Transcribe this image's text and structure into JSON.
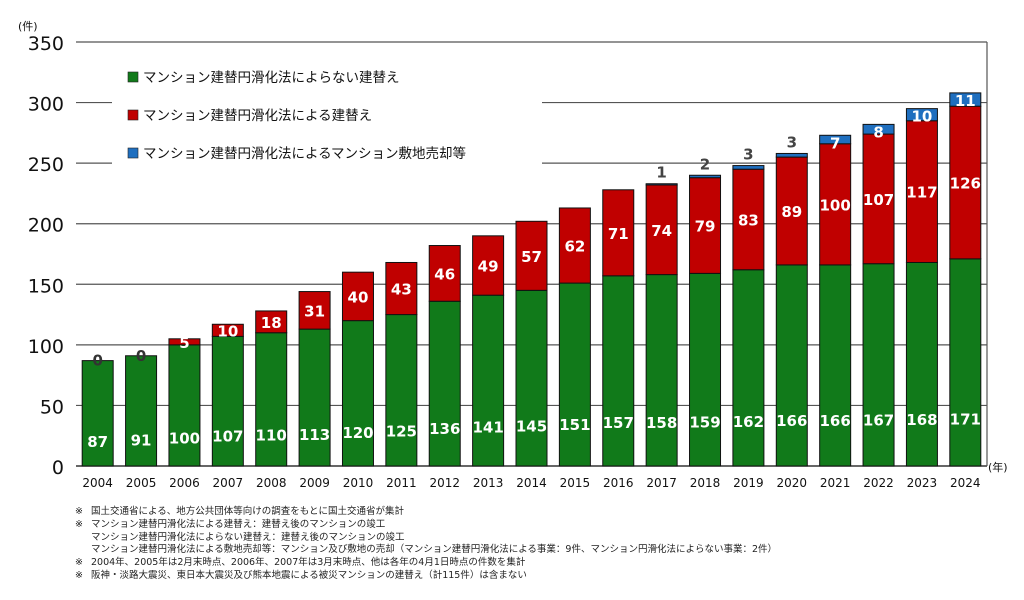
{
  "chart_data": {
    "type": "bar",
    "stacked": true,
    "title": "",
    "xlabel": "(年)",
    "ylabel": "(件)",
    "ylim": [
      0,
      350
    ],
    "yticks": [
      0,
      50,
      100,
      150,
      200,
      250,
      300,
      350
    ],
    "grid": true,
    "legend_position": "top-left",
    "categories": [
      "2004",
      "2005",
      "2006",
      "2007",
      "2008",
      "2009",
      "2010",
      "2011",
      "2012",
      "2013",
      "2014",
      "2015",
      "2016",
      "2017",
      "2018",
      "2019",
      "2020",
      "2021",
      "2022",
      "2023",
      "2024"
    ],
    "series": [
      {
        "name": "マンション建替円滑化法によらない建替え",
        "color": "#117a1a",
        "values": [
          87,
          91,
          100,
          107,
          110,
          113,
          120,
          125,
          136,
          141,
          145,
          151,
          157,
          158,
          159,
          162,
          166,
          166,
          167,
          168,
          171
        ]
      },
      {
        "name": "マンション建替円滑化法による建替え",
        "color": "#c00000",
        "values": [
          0,
          0,
          5,
          10,
          18,
          31,
          40,
          43,
          46,
          49,
          57,
          62,
          71,
          74,
          79,
          83,
          89,
          100,
          107,
          117,
          126
        ]
      },
      {
        "name": "マンション建替円滑化法によるマンション敷地売却等",
        "color": "#1f6fbf",
        "values": [
          null,
          null,
          null,
          null,
          null,
          null,
          null,
          null,
          null,
          null,
          null,
          null,
          null,
          1,
          2,
          3,
          3,
          7,
          8,
          10,
          11
        ]
      }
    ]
  },
  "notes": [
    {
      "mark": "※",
      "text": "国土交通省による、地方公共団体等向けの調査をもとに国土交通省が集計"
    },
    {
      "mark": "※",
      "text": "マンション建替円滑化法による建替え：建替え後のマンションの竣工"
    },
    {
      "mark": "",
      "text": "マンション建替円滑化法によらない建替え：建替え後のマンションの竣工"
    },
    {
      "mark": "",
      "text": "マンション建替円滑化法による敷地売却等：マンション及び敷地の売却（マンション建替円滑化法による事業：9件、マンション円滑化法によらない事業：2件）"
    },
    {
      "mark": "※",
      "text": "2004年、2005年は2月末時点、2006年、2007年は3月末時点、他は各年の4月1日時点の件数を集計"
    },
    {
      "mark": "※",
      "text": "阪神・淡路大震災、東日本大震災及び熊本地震による被災マンションの建替え（計115件）は含まない"
    }
  ]
}
